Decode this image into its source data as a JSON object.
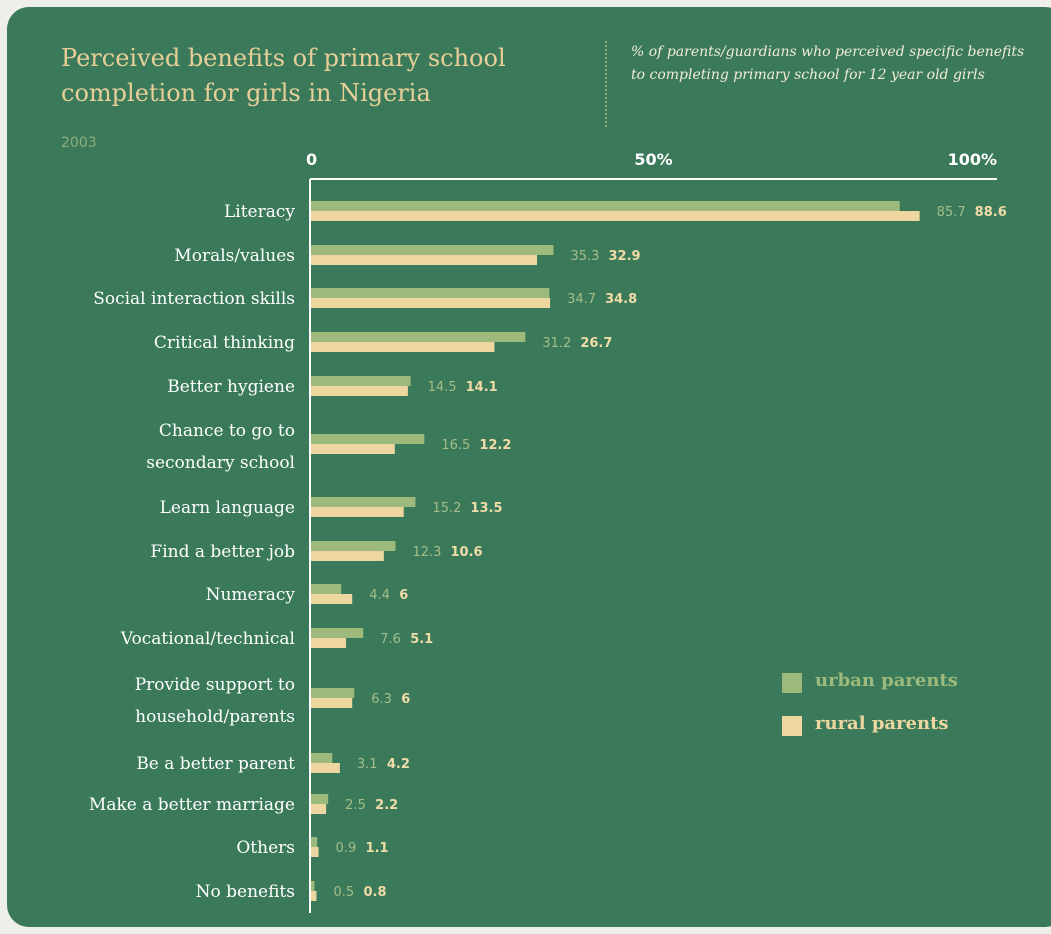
{
  "header": {
    "title": "Perceived benefits of primary school completion for girls in Nigeria",
    "subtitle": "% of parents/guardians who perceived specific benefits to completing primary school for 12 year old girls",
    "year": "2003"
  },
  "colors": {
    "background": "#3a7a5a",
    "urban": "#9dba7c",
    "rural": "#eed6a0",
    "title": "#e8cf98"
  },
  "legend": {
    "urban": "urban parents",
    "rural": "rural parents",
    "placement": "right"
  },
  "chart_data": {
    "type": "bar",
    "orientation": "horizontal",
    "title": "Perceived benefits of primary school completion for girls in Nigeria",
    "subtitle": "% of parents/guardians who perceived specific benefits to completing primary school for 12 year old girls",
    "xlim": [
      0,
      100
    ],
    "x_ticks": [
      "0",
      "50%",
      "100%"
    ],
    "grid": false,
    "categories": [
      [
        "Literacy"
      ],
      [
        "Morals/values"
      ],
      [
        "Social interaction skills"
      ],
      [
        "Critical thinking"
      ],
      [
        "Better hygiene"
      ],
      [
        "Chance to go to",
        "secondary school"
      ],
      [
        "Learn language"
      ],
      [
        "Find a better job"
      ],
      [
        "Numeracy"
      ],
      [
        "Vocational/technical"
      ],
      [
        "Provide support to",
        "household/parents"
      ],
      [
        "Be a better parent"
      ],
      [
        "Make a better marriage"
      ],
      [
        "Others"
      ],
      [
        "No benefits"
      ]
    ],
    "series": [
      {
        "name": "urban parents",
        "values": [
          85.7,
          35.3,
          34.7,
          31.2,
          14.5,
          16.5,
          15.2,
          12.3,
          4.4,
          7.6,
          6.3,
          3.1,
          2.5,
          0.9,
          0.5
        ],
        "labels": [
          "85.7",
          "35.3",
          "34.7",
          "31.2",
          "14.5",
          "16.5",
          "15.2",
          "12.3",
          "4.4",
          "7.6",
          "6.3",
          "3.1",
          "2.5",
          "0.9",
          "0.5"
        ]
      },
      {
        "name": "rural parents",
        "values": [
          88.6,
          32.9,
          34.8,
          26.7,
          14.1,
          12.2,
          13.5,
          10.6,
          6,
          5.1,
          6,
          4.2,
          2.2,
          1.1,
          0.8
        ],
        "labels": [
          "88.6",
          "32.9",
          "34.8",
          "26.7",
          "14.1",
          "12.2",
          "13.5",
          "10.6",
          "6",
          "5.1",
          "6",
          "4.2",
          "2.2",
          "1.1",
          "0.8"
        ]
      }
    ]
  }
}
